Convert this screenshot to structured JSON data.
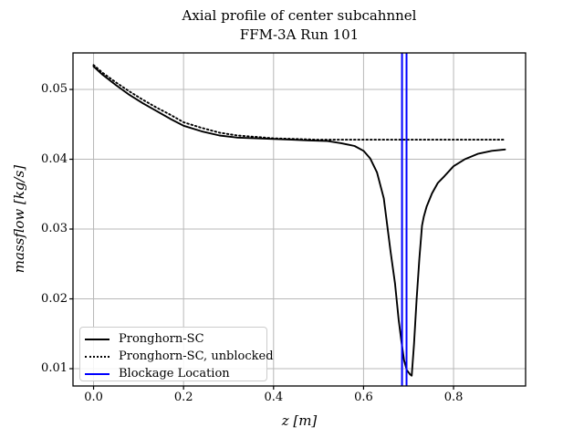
{
  "title": {
    "line1": "Axial profile of center subcahnnel",
    "line2": "FFM-3A Run 101"
  },
  "axes": {
    "xlabel": "z [m]",
    "ylabel": "massflow [kg/s]",
    "x_tick_labels": [
      "0.0",
      "0.2",
      "0.4",
      "0.6",
      "0.8"
    ],
    "x_tick_values": [
      0.0,
      0.2,
      0.4,
      0.6,
      0.8
    ],
    "y_tick_labels": [
      "0.01",
      "0.02",
      "0.03",
      "0.04",
      "0.05"
    ],
    "y_tick_values": [
      0.01,
      0.02,
      0.03,
      0.04,
      0.05
    ],
    "grid": true
  },
  "colors": {
    "curve": "#000000",
    "blockage": "#0000ff",
    "grid": "#b8b8b8",
    "spine": "#000000"
  },
  "legend": {
    "position": "lower left",
    "items": [
      {
        "label": "Pronghorn-SC",
        "style": "solid",
        "color": "#000000"
      },
      {
        "label": "Pronghorn-SC, unblocked",
        "style": "dotted",
        "color": "#000000"
      },
      {
        "label": "Blockage Location",
        "style": "solid",
        "color": "#0000ff"
      }
    ]
  },
  "chart_data": {
    "type": "line",
    "title": "Axial profile of center subcahnnel\nFFM-3A Run 101",
    "xlabel": "z [m]",
    "ylabel": "massflow [kg/s]",
    "xlim": [
      -0.0457,
      0.9601
    ],
    "ylim": [
      0.00752,
      0.05523
    ],
    "grid": true,
    "legend_position": "lower left",
    "series": [
      {
        "name": "Pronghorn-SC",
        "style": "solid",
        "color": "#000000",
        "x": [
          0.0,
          0.02,
          0.05,
          0.08,
          0.11,
          0.14,
          0.17,
          0.2,
          0.24,
          0.28,
          0.32,
          0.36,
          0.4,
          0.44,
          0.48,
          0.52,
          0.55,
          0.58,
          0.6,
          0.615,
          0.63,
          0.645,
          0.66,
          0.67,
          0.678,
          0.684,
          0.69,
          0.696,
          0.703,
          0.707,
          0.712,
          0.718,
          0.724,
          0.73,
          0.734,
          0.74,
          0.752,
          0.765,
          0.78,
          0.8,
          0.825,
          0.855,
          0.885,
          0.9144
        ],
        "y": [
          0.0533,
          0.0521,
          0.0506,
          0.0492,
          0.048,
          0.0469,
          0.0458,
          0.0448,
          0.044,
          0.0434,
          0.0431,
          0.043,
          0.0429,
          0.0428,
          0.0427,
          0.0426,
          0.0423,
          0.0419,
          0.0412,
          0.0401,
          0.0381,
          0.0344,
          0.0268,
          0.0222,
          0.017,
          0.014,
          0.0112,
          0.0098,
          0.0092,
          0.009,
          0.0135,
          0.02,
          0.0258,
          0.0305,
          0.0318,
          0.0332,
          0.0351,
          0.0366,
          0.0376,
          0.039,
          0.04,
          0.0408,
          0.0412,
          0.0414
        ]
      },
      {
        "name": "Pronghorn-SC, unblocked",
        "style": "dotted",
        "color": "#000000",
        "x": [
          0.0,
          0.02,
          0.05,
          0.08,
          0.11,
          0.14,
          0.17,
          0.2,
          0.24,
          0.28,
          0.32,
          0.36,
          0.4,
          0.45,
          0.5,
          0.55,
          0.6,
          0.65,
          0.7,
          0.75,
          0.8,
          0.85,
          0.9144
        ],
        "y": [
          0.0535,
          0.0524,
          0.051,
          0.0497,
          0.0485,
          0.0474,
          0.0464,
          0.0453,
          0.0445,
          0.0438,
          0.0434,
          0.0432,
          0.043,
          0.0429,
          0.0428,
          0.0428,
          0.0428,
          0.0428,
          0.0428,
          0.0428,
          0.0428,
          0.0428,
          0.0428
        ]
      }
    ],
    "vlines": {
      "name": "Blockage Location",
      "color": "#0000ff",
      "x": [
        0.6855,
        0.6955
      ]
    }
  }
}
